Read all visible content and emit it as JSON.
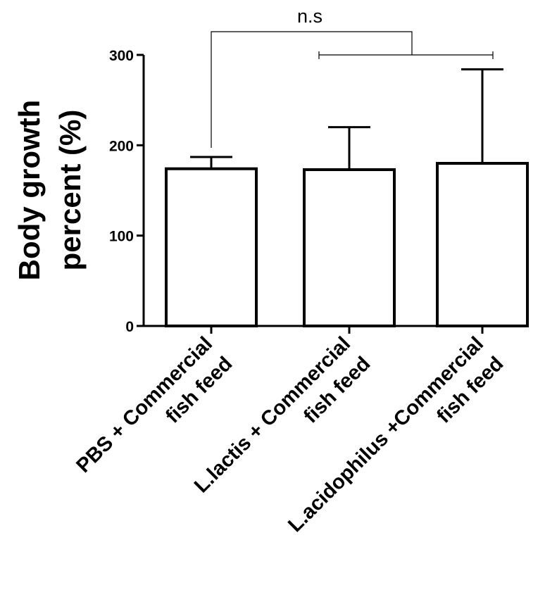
{
  "chart_data": {
    "type": "bar",
    "ylabel_lines": [
      "Body growth",
      "percent (%)"
    ],
    "categories": [
      {
        "lines": [
          "PBS + Commercial",
          "fish feed"
        ]
      },
      {
        "lines": [
          "L.lactis + Commercial",
          "fish feed"
        ]
      },
      {
        "lines": [
          "L.acidophilus +Commercial",
          "fish feed"
        ]
      }
    ],
    "values": [
      174,
      173,
      180
    ],
    "errors": [
      13,
      47,
      104
    ],
    "ylim": [
      0,
      300
    ],
    "yticks": [
      "0",
      "100",
      "200",
      "300"
    ],
    "grid": false,
    "annotation": {
      "text": "n.s",
      "compares": "bar 1 vs bars 2 and 3"
    }
  }
}
